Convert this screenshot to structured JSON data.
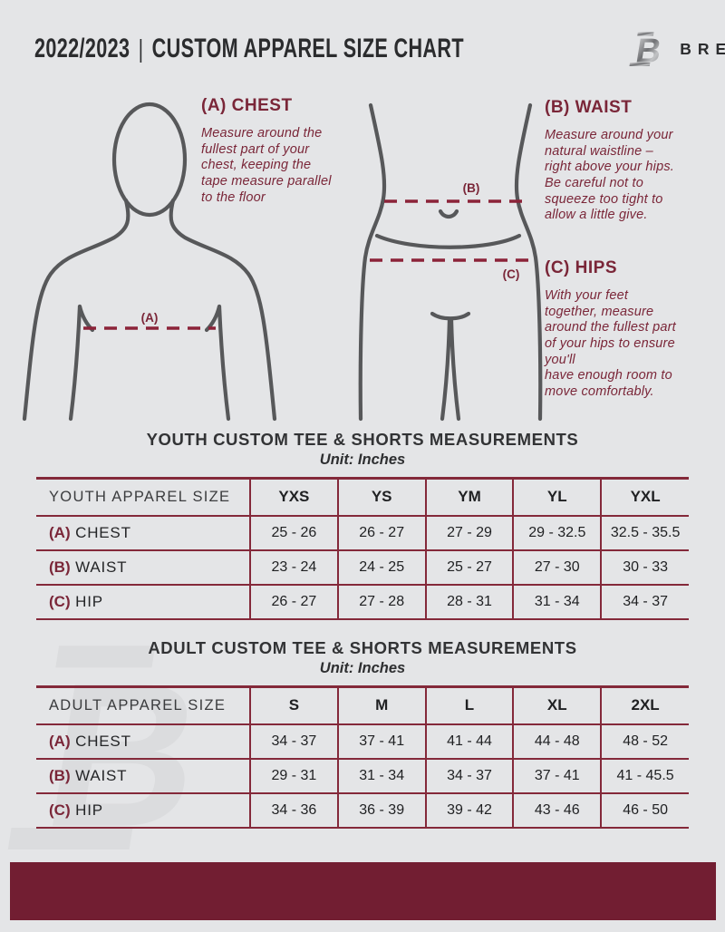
{
  "colors": {
    "background": "#e4e5e7",
    "accent_maroon": "#7a2638",
    "table_line_maroon": "#84293a",
    "footer_maroon": "#721e32",
    "figure_gray": "#57585a"
  },
  "header": {
    "season": "2022/2023",
    "divider": "|",
    "title": "CUSTOM APPAREL SIZE CHART",
    "brand": "BREAKAWAY",
    "logo_icon": "breakaway-b-logo"
  },
  "guide": {
    "chest": {
      "heading": "(A) CHEST",
      "marker": "(A)",
      "body": "Measure around the\nfullest part of your\nchest, keeping the\ntape measure parallel\nto the floor"
    },
    "waist": {
      "heading": "(B) WAIST",
      "marker": "(B)",
      "body": "Measure around your\nnatural waistline –\nright above your hips.\nBe careful not to\nsqueeze too tight to\nallow a little give."
    },
    "hips": {
      "heading": "(C) HIPS",
      "marker": "(C)",
      "body": "With your feet\ntogether, measure\naround the fullest part\nof your hips to ensure\nyou'll\nhave enough room to\nmove comfortably."
    }
  },
  "youth_table": {
    "title": "YOUTH CUSTOM TEE & SHORTS MEASUREMENTS",
    "unit": "Unit: Inches",
    "header": [
      "YOUTH APPAREL SIZE",
      "YXS",
      "YS",
      "YM",
      "YL",
      "YXL"
    ],
    "rows": [
      {
        "key": "(A)",
        "label": "CHEST",
        "values": [
          "25 - 26",
          "26 - 27",
          "27 - 29",
          "29 - 32.5",
          "32.5 - 35.5"
        ]
      },
      {
        "key": "(B)",
        "label": "WAIST",
        "values": [
          "23 - 24",
          "24 - 25",
          "25 - 27",
          "27 - 30",
          "30 - 33"
        ]
      },
      {
        "key": "(C)",
        "label": "HIP",
        "values": [
          "26 - 27",
          "27 - 28",
          "28 - 31",
          "31 - 34",
          "34 - 37"
        ]
      }
    ]
  },
  "adult_table": {
    "title": "ADULT CUSTOM TEE & SHORTS MEASUREMENTS",
    "unit": "Unit: Inches",
    "header": [
      "ADULT APPAREL SIZE",
      "S",
      "M",
      "L",
      "XL",
      "2XL"
    ],
    "rows": [
      {
        "key": "(A)",
        "label": "CHEST",
        "values": [
          "34 - 37",
          "37 - 41",
          "41 - 44",
          "44 - 48",
          "48 - 52"
        ]
      },
      {
        "key": "(B)",
        "label": "WAIST",
        "values": [
          "29 - 31",
          "31 - 34",
          "34 - 37",
          "37 - 41",
          "41 - 45.5"
        ]
      },
      {
        "key": "(C)",
        "label": "HIP",
        "values": [
          "34 - 36",
          "36 - 39",
          "39 - 42",
          "43 - 46",
          "46 - 50"
        ]
      }
    ]
  }
}
